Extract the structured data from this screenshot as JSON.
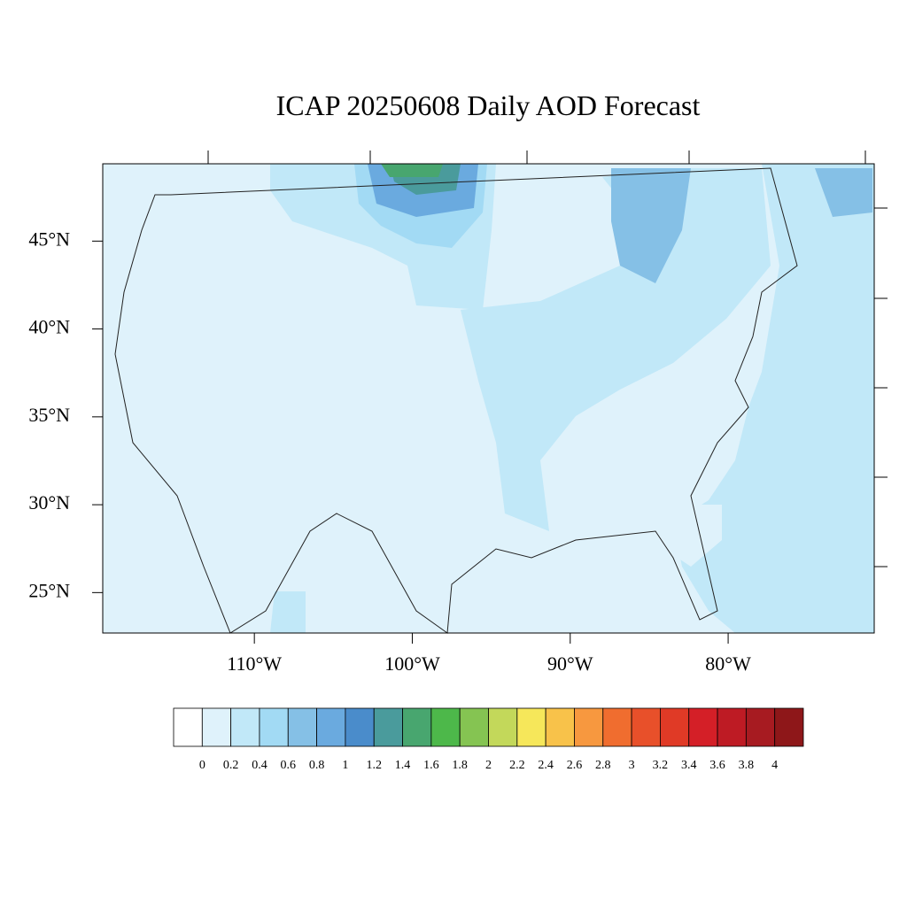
{
  "chart_data": {
    "type": "map",
    "title": "ICAP 20250608 Daily AOD Forecast",
    "xlim": [
      -119.6,
      -70.75
    ],
    "ylim": [
      22.7,
      49.4
    ],
    "yticks": [
      {
        "value": 25,
        "label": "25°N"
      },
      {
        "value": 30,
        "label": "30°N"
      },
      {
        "value": 35,
        "label": "35°N"
      },
      {
        "value": 40,
        "label": "40°N"
      },
      {
        "value": 45,
        "label": "45°N"
      }
    ],
    "xticks": [
      {
        "value": -110,
        "label": "110°W"
      },
      {
        "value": -100,
        "label": "100°W"
      },
      {
        "value": -90,
        "label": "90°W"
      },
      {
        "value": -80,
        "label": "80°W"
      }
    ],
    "colorbar": {
      "levels": [
        0,
        0.2,
        0.4,
        0.6,
        0.8,
        1,
        1.2,
        1.4,
        1.6,
        1.8,
        2,
        2.2,
        2.4,
        2.6,
        2.8,
        3,
        3.2,
        3.4,
        3.6,
        3.8,
        4
      ],
      "colors": [
        "#ffffff",
        "#dff2fb",
        "#c1e8f8",
        "#a2daf4",
        "#85c0e6",
        "#6aaadf",
        "#4a8ccb",
        "#4a9b9c",
        "#48a66f",
        "#4db84a",
        "#85c452",
        "#c3d85a",
        "#f6e75a",
        "#f8c24a",
        "#f7983f",
        "#f06d2f",
        "#e8502a",
        "#e03a26",
        "#d41f27",
        "#be1b24",
        "#a71b21",
        "#8e1719"
      ]
    }
  }
}
